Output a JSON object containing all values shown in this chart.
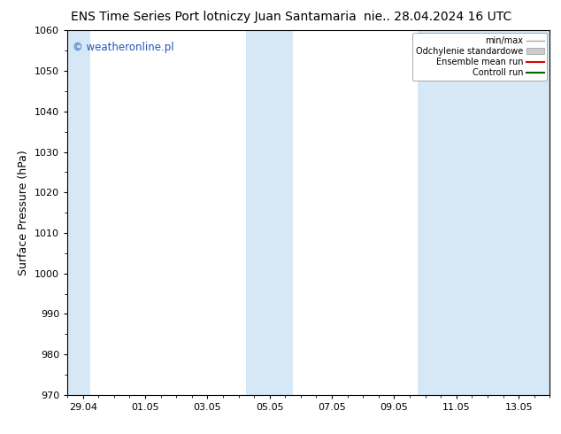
{
  "title_left": "ENS Time Series Port lotniczy Juan Santamaria",
  "title_right": "nie.. 28.04.2024 16 UTC",
  "ylabel": "Surface Pressure (hPa)",
  "ylim": [
    970,
    1060
  ],
  "yticks": [
    970,
    980,
    990,
    1000,
    1010,
    1020,
    1030,
    1040,
    1050,
    1060
  ],
  "x_tick_labels": [
    "29.04",
    "01.05",
    "03.05",
    "05.05",
    "07.05",
    "09.05",
    "11.05",
    "13.05"
  ],
  "x_tick_positions": [
    0,
    2,
    4,
    6,
    8,
    10,
    12,
    14
  ],
  "xlim": [
    -0.5,
    15.0
  ],
  "watermark": "© weatheronline.pl",
  "watermark_color": "#2255bb",
  "bg_color": "#ffffff",
  "plot_bg_color": "#ffffff",
  "shaded_bands": [
    {
      "x_start": -0.5,
      "x_end": 0.25
    },
    {
      "x_start": 5.25,
      "x_end": 6.25
    },
    {
      "x_start": 6.25,
      "x_end": 6.75
    },
    {
      "x_start": 10.75,
      "x_end": 11.75
    },
    {
      "x_start": 11.75,
      "x_end": 15.0
    }
  ],
  "shade_color": "#d6e8f5",
  "legend_entries": [
    {
      "label": "min/max",
      "color": "#aaaaaa",
      "lw": 1.0,
      "type": "line"
    },
    {
      "label": "Odchylenie standardowe",
      "color": "#cccccc",
      "lw": 8,
      "type": "patch"
    },
    {
      "label": "Ensemble mean run",
      "color": "#dd0000",
      "lw": 1.5,
      "type": "line"
    },
    {
      "label": "Controll run",
      "color": "#006600",
      "lw": 1.5,
      "type": "line"
    }
  ],
  "tick_color": "#000000",
  "title_fontsize": 10,
  "axis_label_fontsize": 9,
  "tick_fontsize": 8
}
